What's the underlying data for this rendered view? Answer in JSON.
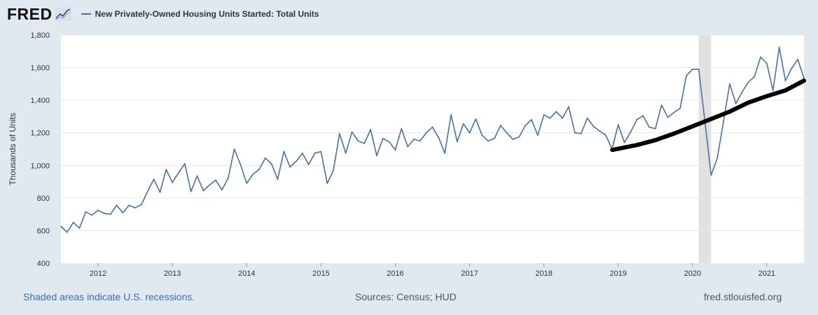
{
  "header": {
    "logo_text": "FRED",
    "series_title": "New Privately-Owned Housing Units Started: Total Units",
    "series_color": "#4572a7"
  },
  "footer": {
    "recession_note": "Shaded areas indicate U.S. recessions.",
    "sources": "Sources: Census; HUD",
    "site": "fred.stlouisfed.org"
  },
  "chart_data": {
    "type": "line",
    "title": "New Privately-Owned Housing Units Started: Total Units",
    "xlabel": "",
    "ylabel": "Thousands of Units",
    "x_start": "2011-07",
    "x_range": [
      2011.5,
      2021.5
    ],
    "ylim": [
      400,
      1800
    ],
    "yticks": [
      400,
      600,
      800,
      1000,
      1200,
      1400,
      1600,
      1800
    ],
    "ytick_labels": [
      "400",
      "600",
      "800",
      "1,000",
      "1,200",
      "1,400",
      "1,600",
      "1,800"
    ],
    "xticks": [
      2012,
      2013,
      2014,
      2015,
      2016,
      2017,
      2018,
      2019,
      2020,
      2021
    ],
    "xtick_labels": [
      "2012",
      "2013",
      "2014",
      "2015",
      "2016",
      "2017",
      "2018",
      "2019",
      "2020",
      "2021"
    ],
    "grid": true,
    "recessions": [
      {
        "start": 2020.083,
        "end": 2020.25
      }
    ],
    "series": [
      {
        "name": "New Privately-Owned Housing Units Started: Total Units",
        "color": "#4572a7",
        "frequency": "monthly",
        "values": [
          625,
          590,
          650,
          615,
          715,
          695,
          725,
          705,
          700,
          755,
          710,
          755,
          740,
          760,
          840,
          915,
          835,
          975,
          895,
          955,
          1010,
          840,
          935,
          845,
          880,
          910,
          850,
          920,
          1100,
          1005,
          890,
          945,
          975,
          1045,
          1010,
          915,
          1085,
          990,
          1025,
          1075,
          1005,
          1075,
          1085,
          890,
          970,
          1195,
          1075,
          1205,
          1150,
          1135,
          1220,
          1060,
          1165,
          1145,
          1095,
          1225,
          1115,
          1160,
          1150,
          1200,
          1235,
          1170,
          1075,
          1310,
          1145,
          1255,
          1200,
          1285,
          1185,
          1150,
          1165,
          1245,
          1200,
          1160,
          1175,
          1245,
          1280,
          1185,
          1310,
          1290,
          1330,
          1290,
          1360,
          1200,
          1195,
          1290,
          1240,
          1210,
          1185,
          1100,
          1250,
          1140,
          1205,
          1280,
          1305,
          1235,
          1225,
          1370,
          1295,
          1325,
          1350,
          1550,
          1590,
          1590,
          1270,
          940,
          1045,
          1270,
          1500,
          1380,
          1450,
          1510,
          1545,
          1665,
          1625,
          1460,
          1725,
          1520,
          1595,
          1650,
          1535
        ]
      }
    ],
    "annotation": {
      "type": "hand-drawn trend line",
      "color": "#000000",
      "points": [
        [
          2018.92,
          1095
        ],
        [
          2019.25,
          1125
        ],
        [
          2019.5,
          1155
        ],
        [
          2019.75,
          1195
        ],
        [
          2020.0,
          1240
        ],
        [
          2020.25,
          1285
        ],
        [
          2020.5,
          1330
        ],
        [
          2020.75,
          1385
        ],
        [
          2021.0,
          1425
        ],
        [
          2021.25,
          1460
        ],
        [
          2021.5,
          1520
        ]
      ]
    }
  }
}
